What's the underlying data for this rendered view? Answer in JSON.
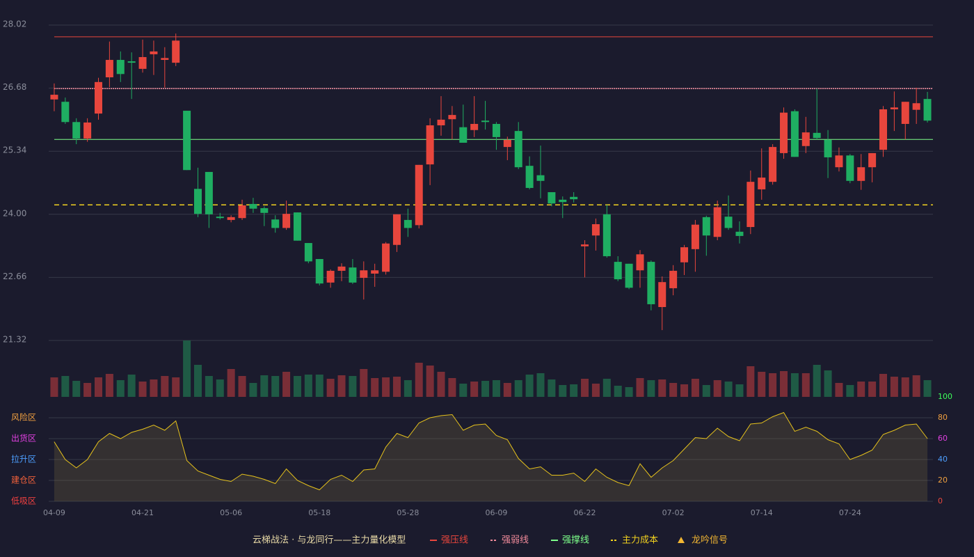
{
  "chart_data": {
    "type": "candlestick",
    "title": "云梯战法 · 与龙同行——主力量化模型",
    "categories": [
      "04-09",
      null,
      null,
      null,
      null,
      null,
      null,
      null,
      "04-21",
      null,
      null,
      null,
      null,
      null,
      null,
      null,
      "05-06",
      null,
      null,
      null,
      null,
      null,
      null,
      null,
      "05-18",
      null,
      null,
      null,
      null,
      null,
      null,
      null,
      "05-28",
      null,
      null,
      null,
      null,
      null,
      null,
      null,
      "06-09",
      null,
      null,
      null,
      null,
      null,
      null,
      null,
      "06-22",
      null,
      null,
      null,
      null,
      null,
      null,
      null,
      "07-02",
      null,
      null,
      null,
      null,
      null,
      null,
      null,
      "07-14",
      null,
      null,
      null,
      null,
      null,
      null,
      null,
      "07-24",
      null,
      null,
      null,
      null,
      null,
      null,
      null
    ],
    "open": [
      26.44,
      26.39,
      25.96,
      25.61,
      26.14,
      26.91,
      27.28,
      27.25,
      27.09,
      27.4,
      27.28,
      27.22,
      26.2,
      24.54,
      24.9,
      23.95,
      23.88,
      23.92,
      24.22,
      24.13,
      23.89,
      23.71,
      24.04,
      23.39,
      23.05,
      22.55,
      22.8,
      22.87,
      22.65,
      22.74,
      22.78,
      23.35,
      23.88,
      23.77,
      25.06,
      25.89,
      26.02,
      25.85,
      25.79,
      25.99,
      25.92,
      25.43,
      25.77,
      25.03,
      24.83,
      24.47,
      24.31,
      24.37,
      23.32,
      23.55,
      24.0,
      22.99,
      22.95,
      22.81,
      22.99,
      22.03,
      22.43,
      22.98,
      23.26,
      23.94,
      23.52,
      23.95,
      23.63,
      23.73,
      24.53,
      24.69,
      25.3,
      26.19,
      25.45,
      25.73,
      25.58,
      25.0,
      25.25,
      24.71,
      25.0,
      25.37,
      26.23,
      25.92,
      26.22,
      26.45
    ],
    "high": [
      26.78,
      26.48,
      26.04,
      26.04,
      26.9,
      27.67,
      27.46,
      27.44,
      27.71,
      27.69,
      27.55,
      27.84,
      26.2,
      24.99,
      24.9,
      24.03,
      23.98,
      24.31,
      24.35,
      24.17,
      23.98,
      24.29,
      24.04,
      23.39,
      23.05,
      22.83,
      22.96,
      23.05,
      23.0,
      22.95,
      23.41,
      24.0,
      24.12,
      25.05,
      26.04,
      26.51,
      26.3,
      26.33,
      26.51,
      26.41,
      25.96,
      25.65,
      25.96,
      25.23,
      25.46,
      24.47,
      24.38,
      24.47,
      23.45,
      23.91,
      24.2,
      23.11,
      22.95,
      23.24,
      23.02,
      22.68,
      22.92,
      23.35,
      23.88,
      23.97,
      24.29,
      24.4,
      23.85,
      24.93,
      25.4,
      25.49,
      26.27,
      26.23,
      26.07,
      26.67,
      25.79,
      25.42,
      25.28,
      25.28,
      25.3,
      26.3,
      26.61,
      26.39,
      26.69,
      26.6
    ],
    "low": [
      26.19,
      25.92,
      25.49,
      25.54,
      26.01,
      26.7,
      26.81,
      26.45,
      27.01,
      26.96,
      26.69,
      27.15,
      24.94,
      23.94,
      23.71,
      23.89,
      23.83,
      23.88,
      24.03,
      23.75,
      23.61,
      23.67,
      23.44,
      22.96,
      22.49,
      22.44,
      22.58,
      22.52,
      22.19,
      22.46,
      22.72,
      23.2,
      23.52,
      23.7,
      24.62,
      25.67,
      25.59,
      25.52,
      25.64,
      25.8,
      25.37,
      25.15,
      24.96,
      24.53,
      24.34,
      24.17,
      23.92,
      24.25,
      22.66,
      23.23,
      23.08,
      22.58,
      22.41,
      22.44,
      21.96,
      21.54,
      22.28,
      22.71,
      22.78,
      23.12,
      23.45,
      23.67,
      23.38,
      23.58,
      24.31,
      24.63,
      25.18,
      25.22,
      25.3,
      25.59,
      24.77,
      24.91,
      24.66,
      24.52,
      24.68,
      25.22,
      25.77,
      25.59,
      25.92,
      25.95
    ],
    "close": [
      26.54,
      25.96,
      25.61,
      25.95,
      26.81,
      27.28,
      26.98,
      27.22,
      27.34,
      27.46,
      27.32,
      27.69,
      24.94,
      24.01,
      24.0,
      23.92,
      23.94,
      24.19,
      24.12,
      24.03,
      23.71,
      24.01,
      23.44,
      23.0,
      22.53,
      22.8,
      22.89,
      22.55,
      22.81,
      22.81,
      23.38,
      24.0,
      23.71,
      25.05,
      25.89,
      26.01,
      26.11,
      25.52,
      25.92,
      25.96,
      25.64,
      25.58,
      25.0,
      24.56,
      24.71,
      24.23,
      24.26,
      24.32,
      23.36,
      23.79,
      23.11,
      22.62,
      22.44,
      23.15,
      22.09,
      22.56,
      22.8,
      23.3,
      23.78,
      23.55,
      24.15,
      23.71,
      23.54,
      24.69,
      24.78,
      25.43,
      26.16,
      25.22,
      25.74,
      25.62,
      25.21,
      25.25,
      24.71,
      25.0,
      25.3,
      26.23,
      26.27,
      26.39,
      26.36,
      25.99
    ],
    "up_color": "#e8463d",
    "down_color": "#1fae62",
    "ylim": [
      21.32,
      28.02
    ],
    "yticks": [
      21.32,
      22.66,
      {
        "value": 24,
        "label": "24.00"
      },
      25.34,
      26.68,
      28.02
    ],
    "grid": true,
    "lines": [
      {
        "name": "强压线",
        "value": 27.77,
        "color": "#e8463d",
        "dash": false
      },
      {
        "name": "强弱线",
        "value": 26.67,
        "color": "#f08a9a",
        "dash": true
      },
      {
        "name": "强撑线",
        "value": 25.59,
        "color": "#7dff8a",
        "dash": false
      },
      {
        "name": "主力成本",
        "value": 24.2,
        "color": "#f2d21f",
        "dash": true
      }
    ],
    "signal": {
      "name": "龙吟信号",
      "color": "#f2b632"
    },
    "volume": {
      "values": [
        28,
        30,
        23,
        20,
        28,
        33,
        24,
        32,
        22,
        25,
        30,
        28,
        81,
        46,
        30,
        25,
        40,
        30,
        20,
        31,
        30,
        36,
        30,
        32,
        32,
        26,
        31,
        30,
        40,
        27,
        28,
        29,
        24,
        49,
        45,
        36,
        27,
        19,
        22,
        23,
        24,
        20,
        24,
        32,
        34,
        25,
        17,
        18,
        26,
        19,
        26,
        16,
        14,
        27,
        24,
        25,
        20,
        18,
        26,
        17,
        24,
        22,
        18,
        44,
        36,
        34,
        37,
        34,
        34,
        46,
        38,
        20,
        17,
        22,
        22,
        33,
        29,
        28,
        31,
        24
      ],
      "up_color": "#7a2e37",
      "down_color": "#1f5a45"
    },
    "indicator": {
      "type": "area",
      "color": "#e6c21c",
      "values": [
        57,
        40,
        32,
        40,
        57,
        65,
        60,
        66,
        69,
        73,
        68,
        77,
        39,
        29,
        25,
        21,
        19,
        26,
        24,
        21,
        17,
        31,
        20,
        15,
        11,
        21,
        25,
        19,
        30,
        31,
        52,
        65,
        61,
        75,
        80,
        82,
        83,
        68,
        73,
        74,
        63,
        59,
        41,
        31,
        33,
        25,
        25,
        27,
        19,
        31,
        23,
        18,
        15,
        36,
        23,
        32,
        39,
        50,
        61,
        60,
        70,
        62,
        58,
        74,
        75,
        81,
        85,
        67,
        71,
        67,
        59,
        55,
        40,
        44,
        49,
        64,
        68,
        73,
        74,
        60
      ],
      "ylim": [
        0,
        100
      ],
      "yticks": [
        0,
        20,
        40,
        60,
        80,
        100
      ],
      "ytick_colors": [
        "#e8463d",
        "#f0a040",
        "#4d9fff",
        "#e040e0",
        "#f0a040",
        "#3cff5a"
      ],
      "zones": [
        {
          "label": "风险区",
          "value": 80,
          "color": "#f0a040"
        },
        {
          "label": "出货区",
          "value": 60,
          "color": "#e040e0"
        },
        {
          "label": "拉升区",
          "value": 40,
          "color": "#4d9fff"
        },
        {
          "label": "建仓区",
          "value": 20,
          "color": "#f0603a"
        },
        {
          "label": "低吸区",
          "value": 0,
          "color": "#f04040"
        }
      ]
    }
  }
}
